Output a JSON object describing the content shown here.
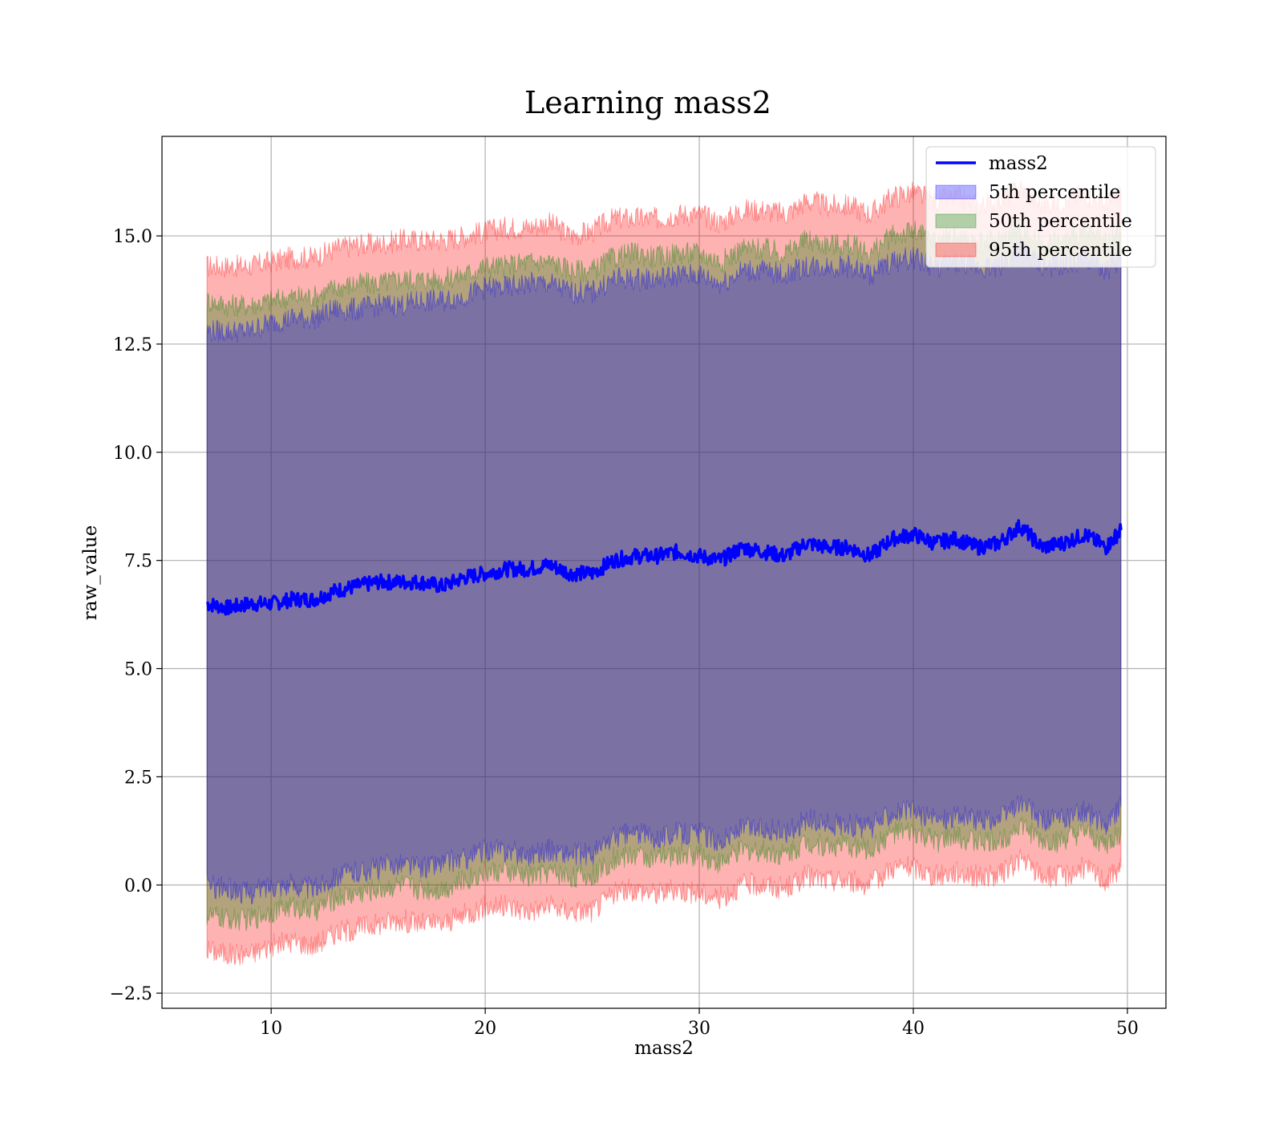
{
  "chart_data": {
    "type": "area",
    "title": "Learning mass2",
    "xlabel": "mass2",
    "ylabel": "raw_value",
    "xlim": [
      4.9,
      51.8
    ],
    "ylim": [
      -2.85,
      17.3
    ],
    "xticks": [
      10,
      20,
      30,
      40,
      50
    ],
    "yticks": [
      -2.5,
      0.0,
      2.5,
      5.0,
      7.5,
      10.0,
      12.5,
      15.0
    ],
    "ytick_labels": [
      "−2.5",
      "0.0",
      "2.5",
      "5.0",
      "7.5",
      "10.0",
      "12.5",
      "15.0"
    ],
    "grid": true,
    "legend": {
      "placement": "top-right",
      "entries": [
        {
          "label": "mass2",
          "kind": "line",
          "color": "#0000ff"
        },
        {
          "label": "5th percentile",
          "kind": "patch",
          "color": "#0000ff"
        },
        {
          "label": "50th percentile",
          "kind": "patch",
          "color": "#008000"
        },
        {
          "label": "95th percentile",
          "kind": "patch",
          "color": "#ff0000"
        }
      ]
    },
    "x": [
      7.0,
      8.0,
      9.0,
      10.0,
      11.0,
      12.0,
      13.0,
      14.0,
      15.0,
      16.0,
      17.0,
      18.0,
      19.0,
      20.0,
      21.0,
      22.0,
      23.0,
      24.0,
      25.0,
      26.0,
      27.0,
      28.0,
      29.0,
      30.0,
      31.0,
      32.0,
      33.0,
      34.0,
      35.0,
      36.0,
      37.0,
      38.0,
      39.0,
      40.0,
      41.0,
      42.0,
      43.0,
      44.0,
      45.0,
      46.0,
      47.0,
      48.0,
      49.0,
      49.7
    ],
    "series": [
      {
        "name": "mass2",
        "kind": "line",
        "color": "#0000ff",
        "values": [
          6.5,
          6.4,
          6.5,
          6.5,
          6.6,
          6.6,
          6.8,
          6.9,
          7.0,
          7.0,
          7.0,
          6.9,
          7.1,
          7.2,
          7.3,
          7.3,
          7.4,
          7.2,
          7.2,
          7.5,
          7.6,
          7.6,
          7.7,
          7.6,
          7.5,
          7.8,
          7.7,
          7.6,
          7.9,
          7.8,
          7.8,
          7.6,
          8.0,
          8.1,
          7.9,
          8.0,
          7.8,
          7.9,
          8.3,
          7.8,
          7.9,
          8.1,
          7.8,
          8.2
        ]
      },
      {
        "name": "5th percentile",
        "kind": "band",
        "color": "#0000ff",
        "lower": [
          0.0,
          -0.1,
          -0.2,
          0.0,
          0.0,
          -0.1,
          0.2,
          0.3,
          0.4,
          0.5,
          0.4,
          0.5,
          0.6,
          0.8,
          0.8,
          0.7,
          0.8,
          0.7,
          0.7,
          1.1,
          1.2,
          1.1,
          1.2,
          1.2,
          1.0,
          1.3,
          1.3,
          1.2,
          1.5,
          1.4,
          1.4,
          1.3,
          1.7,
          1.7,
          1.5,
          1.6,
          1.5,
          1.5,
          1.9,
          1.5,
          1.5,
          1.7,
          1.4,
          1.8
        ],
        "upper": [
          12.8,
          12.8,
          12.8,
          13.0,
          13.1,
          13.1,
          13.3,
          13.3,
          13.4,
          13.4,
          13.5,
          13.5,
          13.6,
          13.8,
          13.8,
          13.9,
          13.9,
          13.7,
          13.7,
          14.0,
          14.0,
          14.0,
          14.1,
          14.1,
          13.9,
          14.2,
          14.2,
          14.1,
          14.3,
          14.3,
          14.3,
          14.1,
          14.4,
          14.5,
          14.3,
          14.4,
          14.3,
          14.3,
          14.7,
          14.3,
          14.3,
          14.5,
          14.2,
          14.5
        ]
      },
      {
        "name": "50th percentile",
        "kind": "band",
        "color": "#008000",
        "lower": [
          -0.7,
          -0.8,
          -0.8,
          -0.6,
          -0.5,
          -0.6,
          -0.3,
          -0.2,
          -0.1,
          0.0,
          -0.1,
          -0.1,
          0.1,
          0.3,
          0.3,
          0.2,
          0.3,
          0.2,
          0.2,
          0.6,
          0.7,
          0.6,
          0.7,
          0.7,
          0.5,
          0.8,
          0.8,
          0.7,
          1.0,
          0.9,
          0.9,
          0.8,
          1.2,
          1.2,
          1.0,
          1.1,
          1.0,
          1.0,
          1.4,
          1.0,
          1.0,
          1.2,
          0.9,
          1.2
        ],
        "upper": [
          13.5,
          13.4,
          13.4,
          13.5,
          13.6,
          13.6,
          13.8,
          13.9,
          13.9,
          14.0,
          14.0,
          14.0,
          14.1,
          14.3,
          14.3,
          14.4,
          14.4,
          14.2,
          14.2,
          14.5,
          14.6,
          14.5,
          14.6,
          14.6,
          14.4,
          14.7,
          14.7,
          14.6,
          14.9,
          14.8,
          14.8,
          14.6,
          15.0,
          15.1,
          14.9,
          15.0,
          14.8,
          14.9,
          15.2,
          14.8,
          14.9,
          15.1,
          14.8,
          15.1
        ]
      },
      {
        "name": "95th percentile",
        "kind": "band",
        "color": "#ff0000",
        "lower": [
          -1.5,
          -1.6,
          -1.6,
          -1.4,
          -1.3,
          -1.4,
          -1.1,
          -1.0,
          -0.9,
          -0.8,
          -0.9,
          -0.9,
          -0.7,
          -0.5,
          -0.5,
          -0.6,
          -0.5,
          -0.6,
          -0.6,
          -0.2,
          -0.1,
          -0.2,
          -0.1,
          -0.2,
          -0.3,
          0.0,
          0.0,
          -0.1,
          0.2,
          0.1,
          0.1,
          0.0,
          0.4,
          0.4,
          0.2,
          0.3,
          0.2,
          0.2,
          0.6,
          0.2,
          0.2,
          0.4,
          0.1,
          0.4
        ],
        "upper": [
          14.3,
          14.3,
          14.3,
          14.4,
          14.5,
          14.5,
          14.7,
          14.8,
          14.8,
          14.9,
          14.9,
          14.9,
          15.0,
          15.1,
          15.2,
          15.2,
          15.3,
          15.0,
          15.1,
          15.4,
          15.4,
          15.4,
          15.5,
          15.5,
          15.3,
          15.6,
          15.6,
          15.5,
          15.8,
          15.7,
          15.7,
          15.5,
          15.9,
          16.0,
          15.8,
          15.9,
          15.7,
          15.8,
          16.1,
          15.7,
          15.8,
          16.0,
          15.7,
          16.0
        ]
      }
    ]
  }
}
